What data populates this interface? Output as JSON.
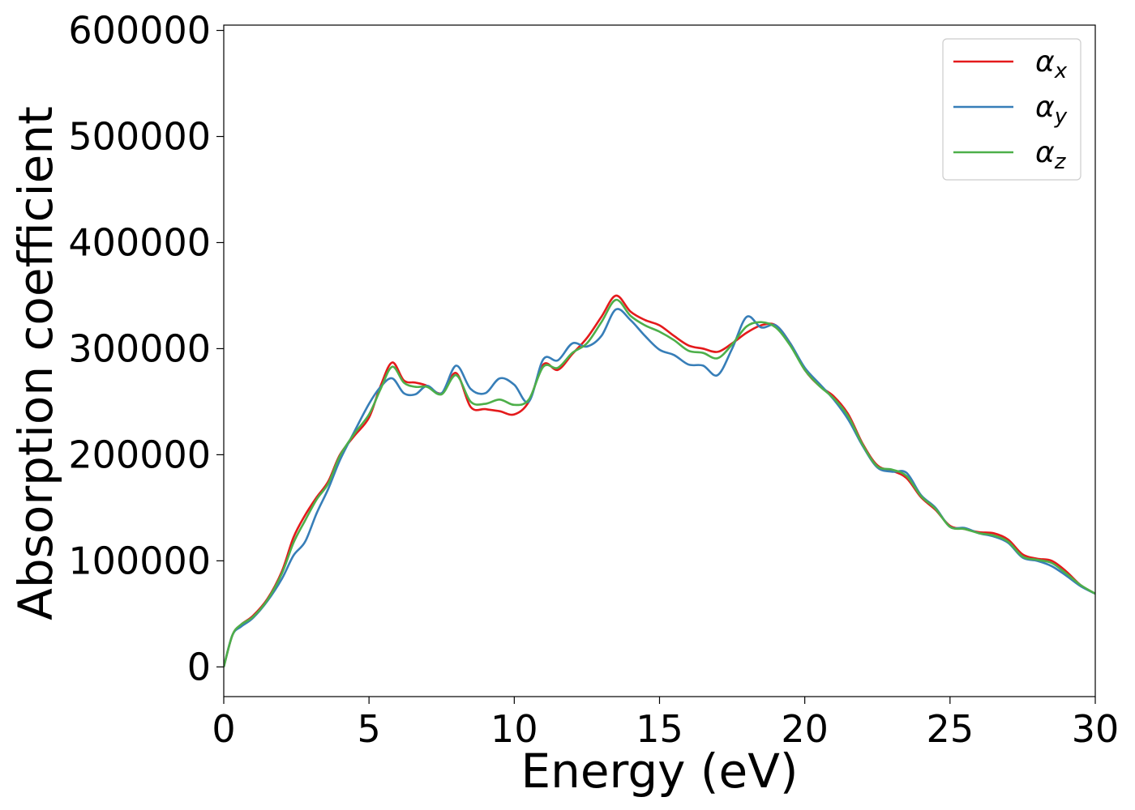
{
  "chart_data": {
    "type": "line",
    "xlabel": "Energy (eV)",
    "ylabel": "Absorption coefficient",
    "xlim": [
      0,
      30
    ],
    "ylim": [
      -28000,
      605000
    ],
    "xticks": [
      0,
      5,
      10,
      15,
      20,
      25,
      30
    ],
    "xtick_labels": [
      "0",
      "5",
      "10",
      "15",
      "20",
      "25",
      "30"
    ],
    "yticks": [
      0,
      100000,
      200000,
      300000,
      400000,
      500000,
      600000
    ],
    "ytick_labels": [
      "0",
      "100000",
      "200000",
      "300000",
      "400000",
      "500000",
      "600000"
    ],
    "grid": false,
    "legend_position": "top-right",
    "series": [
      {
        "name": "α_x",
        "symbol": "α",
        "subscript": "x",
        "color": "#e41a1c",
        "x": [
          0,
          0.3,
          0.6,
          1.0,
          1.5,
          2.0,
          2.4,
          2.8,
          3.2,
          3.6,
          4.0,
          4.5,
          5.0,
          5.4,
          5.8,
          6.2,
          6.6,
          7.0,
          7.5,
          8.0,
          8.5,
          9.0,
          9.5,
          10.0,
          10.5,
          11.0,
          11.5,
          12.0,
          12.5,
          13.0,
          13.5,
          14.0,
          14.5,
          15.0,
          15.5,
          16.0,
          16.5,
          17.0,
          17.5,
          18.0,
          18.5,
          19.0,
          19.5,
          20.0,
          20.5,
          21.0,
          21.5,
          22.0,
          22.5,
          23.0,
          23.5,
          24.0,
          24.5,
          25.0,
          25.5,
          26.0,
          26.5,
          27.0,
          27.5,
          28.0,
          28.5,
          29.0,
          29.5,
          30.0
        ],
        "y": [
          0,
          30000,
          40000,
          48000,
          64000,
          90000,
          122000,
          143000,
          160000,
          175000,
          200000,
          218000,
          235000,
          265000,
          287000,
          270000,
          268000,
          265000,
          258000,
          277000,
          245000,
          243000,
          241000,
          238000,
          250000,
          285000,
          280000,
          295000,
          310000,
          330000,
          350000,
          335000,
          327000,
          322000,
          312000,
          303000,
          300000,
          297000,
          305000,
          315000,
          322000,
          322000,
          305000,
          280000,
          265000,
          255000,
          238000,
          210000,
          190000,
          185000,
          178000,
          160000,
          148000,
          133000,
          130000,
          127000,
          126000,
          120000,
          106000,
          102000,
          100000,
          90000,
          77000,
          69000
        ]
      },
      {
        "name": "α_y",
        "symbol": "α",
        "subscript": "y",
        "color": "#377eb8",
        "x": [
          0,
          0.3,
          0.6,
          1.0,
          1.5,
          2.0,
          2.4,
          2.8,
          3.2,
          3.6,
          4.0,
          4.5,
          5.0,
          5.4,
          5.8,
          6.2,
          6.6,
          7.0,
          7.5,
          8.0,
          8.5,
          9.0,
          9.5,
          10.0,
          10.5,
          11.0,
          11.5,
          12.0,
          12.5,
          13.0,
          13.5,
          14.0,
          14.5,
          15.0,
          15.5,
          16.0,
          16.5,
          17.0,
          17.5,
          18.0,
          18.5,
          19.0,
          19.5,
          20.0,
          20.5,
          21.0,
          21.5,
          22.0,
          22.5,
          23.0,
          23.5,
          24.0,
          24.5,
          25.0,
          25.5,
          26.0,
          26.5,
          27.0,
          27.5,
          28.0,
          28.5,
          29.0,
          29.5,
          30.0
        ],
        "y": [
          0,
          30000,
          38000,
          46000,
          62000,
          83000,
          105000,
          118000,
          145000,
          168000,
          195000,
          222000,
          248000,
          264000,
          272000,
          258000,
          257000,
          265000,
          258000,
          284000,
          262000,
          258000,
          272000,
          266000,
          250000,
          290000,
          289000,
          305000,
          302000,
          312000,
          337000,
          327000,
          312000,
          299000,
          294000,
          285000,
          284000,
          275000,
          300000,
          330000,
          320000,
          322000,
          305000,
          282000,
          267000,
          252000,
          233000,
          208000,
          188000,
          184000,
          183000,
          162000,
          150000,
          132000,
          131000,
          126000,
          123000,
          117000,
          103000,
          100000,
          95000,
          86000,
          76000,
          69000
        ]
      },
      {
        "name": "α_z",
        "symbol": "α",
        "subscript": "z",
        "color": "#4daf4a",
        "x": [
          0,
          0.3,
          0.6,
          1.0,
          1.5,
          2.0,
          2.4,
          2.8,
          3.2,
          3.6,
          4.0,
          4.5,
          5.0,
          5.4,
          5.8,
          6.2,
          6.6,
          7.0,
          7.5,
          8.0,
          8.5,
          9.0,
          9.5,
          10.0,
          10.5,
          11.0,
          11.5,
          12.0,
          12.5,
          13.0,
          13.5,
          14.0,
          14.5,
          15.0,
          15.5,
          16.0,
          16.5,
          17.0,
          17.5,
          18.0,
          18.5,
          19.0,
          19.5,
          20.0,
          20.5,
          21.0,
          21.5,
          22.0,
          22.5,
          23.0,
          23.5,
          24.0,
          24.5,
          25.0,
          25.5,
          26.0,
          26.5,
          27.0,
          27.5,
          28.0,
          28.5,
          29.0,
          29.5,
          30.0
        ],
        "y": [
          0,
          30000,
          40000,
          47000,
          63000,
          88000,
          117000,
          138000,
          158000,
          173000,
          199000,
          220000,
          238000,
          262000,
          283000,
          268000,
          264000,
          264000,
          257000,
          275000,
          250000,
          248000,
          252000,
          247000,
          252000,
          283000,
          282000,
          296000,
          305000,
          325000,
          346000,
          331000,
          322000,
          316000,
          308000,
          298000,
          296000,
          291000,
          304000,
          321000,
          325000,
          320000,
          303000,
          280000,
          265000,
          253000,
          236000,
          209000,
          189000,
          186000,
          180000,
          161000,
          149000,
          132000,
          130000,
          126000,
          124000,
          118000,
          104000,
          101000,
          98000,
          88000,
          77000,
          69000
        ]
      }
    ]
  }
}
